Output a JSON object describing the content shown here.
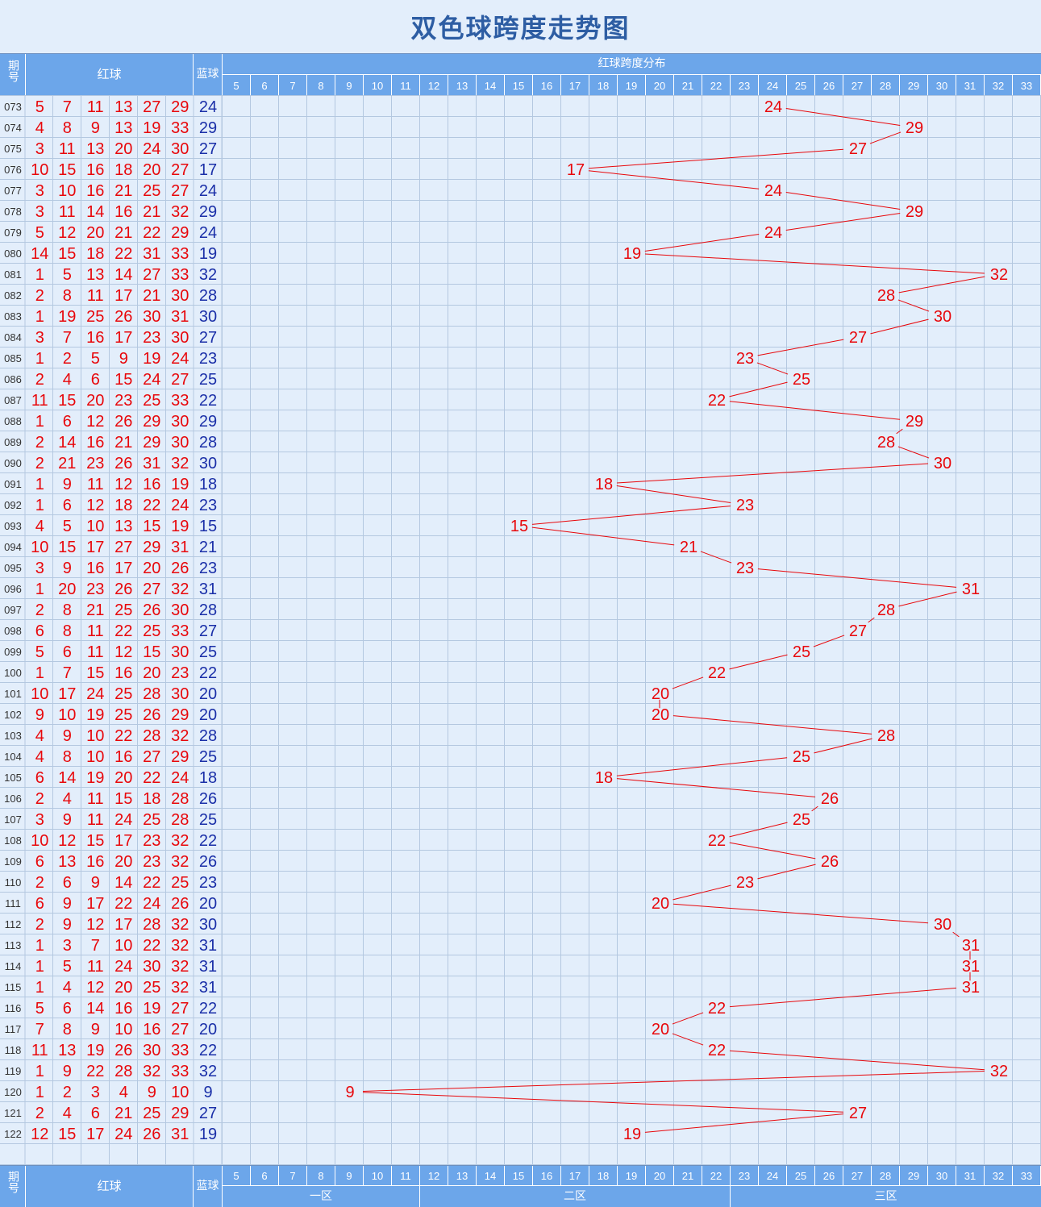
{
  "title": "双色球跨度走势图",
  "header": {
    "issue_label": "期号",
    "red_label": "红球",
    "blue_label": "蓝球",
    "distribution_label": "红球跨度分布"
  },
  "zones": [
    "一区",
    "二区",
    "三区"
  ],
  "colors": {
    "red_ball": "#e8070b",
    "blue_ball": "#1a2fa8",
    "header_bg": "#6ca6ea",
    "grid_bg": "#e3eefb",
    "grid_line": "#b4c8e0",
    "trend_line": "#e8070b"
  },
  "chart_data": {
    "type": "line",
    "x_categories": [
      5,
      6,
      7,
      8,
      9,
      10,
      11,
      12,
      13,
      14,
      15,
      16,
      17,
      18,
      19,
      20,
      21,
      22,
      23,
      24,
      25,
      26,
      27,
      28,
      29,
      30,
      31,
      32,
      33
    ],
    "rows": [
      {
        "issue": "073",
        "red": [
          5,
          7,
          11,
          13,
          27,
          29
        ],
        "blue": 24,
        "span": 24
      },
      {
        "issue": "074",
        "red": [
          4,
          8,
          9,
          13,
          19,
          33
        ],
        "blue": 29,
        "span": 29
      },
      {
        "issue": "075",
        "red": [
          3,
          11,
          13,
          20,
          24,
          30
        ],
        "blue": 27,
        "span": 27
      },
      {
        "issue": "076",
        "red": [
          10,
          15,
          16,
          18,
          20,
          27
        ],
        "blue": 17,
        "span": 17
      },
      {
        "issue": "077",
        "red": [
          3,
          10,
          16,
          21,
          25,
          27
        ],
        "blue": 24,
        "span": 24
      },
      {
        "issue": "078",
        "red": [
          3,
          11,
          14,
          16,
          21,
          32
        ],
        "blue": 29,
        "span": 29
      },
      {
        "issue": "079",
        "red": [
          5,
          12,
          20,
          21,
          22,
          29
        ],
        "blue": 24,
        "span": 24
      },
      {
        "issue": "080",
        "red": [
          14,
          15,
          18,
          22,
          31,
          33
        ],
        "blue": 19,
        "span": 19
      },
      {
        "issue": "081",
        "red": [
          1,
          5,
          13,
          14,
          27,
          33
        ],
        "blue": 32,
        "span": 32
      },
      {
        "issue": "082",
        "red": [
          2,
          8,
          11,
          17,
          21,
          30
        ],
        "blue": 28,
        "span": 28
      },
      {
        "issue": "083",
        "red": [
          1,
          19,
          25,
          26,
          30,
          31
        ],
        "blue": 30,
        "span": 30
      },
      {
        "issue": "084",
        "red": [
          3,
          7,
          16,
          17,
          23,
          30
        ],
        "blue": 27,
        "span": 27
      },
      {
        "issue": "085",
        "red": [
          1,
          2,
          5,
          9,
          19,
          24
        ],
        "blue": 23,
        "span": 23
      },
      {
        "issue": "086",
        "red": [
          2,
          4,
          6,
          15,
          24,
          27
        ],
        "blue": 25,
        "span": 25
      },
      {
        "issue": "087",
        "red": [
          11,
          15,
          20,
          23,
          25,
          33
        ],
        "blue": 22,
        "span": 22
      },
      {
        "issue": "088",
        "red": [
          1,
          6,
          12,
          26,
          29,
          30
        ],
        "blue": 29,
        "span": 29
      },
      {
        "issue": "089",
        "red": [
          2,
          14,
          16,
          21,
          29,
          30
        ],
        "blue": 28,
        "span": 28
      },
      {
        "issue": "090",
        "red": [
          2,
          21,
          23,
          26,
          31,
          32
        ],
        "blue": 30,
        "span": 30
      },
      {
        "issue": "091",
        "red": [
          1,
          9,
          11,
          12,
          16,
          19
        ],
        "blue": 18,
        "span": 18
      },
      {
        "issue": "092",
        "red": [
          1,
          6,
          12,
          18,
          22,
          24
        ],
        "blue": 23,
        "span": 23
      },
      {
        "issue": "093",
        "red": [
          4,
          5,
          10,
          13,
          15,
          19
        ],
        "blue": 15,
        "span": 15
      },
      {
        "issue": "094",
        "red": [
          10,
          15,
          17,
          27,
          29,
          31
        ],
        "blue": 21,
        "span": 21
      },
      {
        "issue": "095",
        "red": [
          3,
          9,
          16,
          17,
          20,
          26
        ],
        "blue": 23,
        "span": 23
      },
      {
        "issue": "096",
        "red": [
          1,
          20,
          23,
          26,
          27,
          32
        ],
        "blue": 31,
        "span": 31
      },
      {
        "issue": "097",
        "red": [
          2,
          8,
          21,
          25,
          26,
          30
        ],
        "blue": 28,
        "span": 28
      },
      {
        "issue": "098",
        "red": [
          6,
          8,
          11,
          22,
          25,
          33
        ],
        "blue": 27,
        "span": 27
      },
      {
        "issue": "099",
        "red": [
          5,
          6,
          11,
          12,
          15,
          30
        ],
        "blue": 25,
        "span": 25
      },
      {
        "issue": "100",
        "red": [
          1,
          7,
          15,
          16,
          20,
          23
        ],
        "blue": 22,
        "span": 22
      },
      {
        "issue": "101",
        "red": [
          10,
          17,
          24,
          25,
          28,
          30
        ],
        "blue": 20,
        "span": 20
      },
      {
        "issue": "102",
        "red": [
          9,
          10,
          19,
          25,
          26,
          29
        ],
        "blue": 20,
        "span": 20
      },
      {
        "issue": "103",
        "red": [
          4,
          9,
          10,
          22,
          28,
          32
        ],
        "blue": 28,
        "span": 28
      },
      {
        "issue": "104",
        "red": [
          4,
          8,
          10,
          16,
          27,
          29
        ],
        "blue": 25,
        "span": 25
      },
      {
        "issue": "105",
        "red": [
          6,
          14,
          19,
          20,
          22,
          24
        ],
        "blue": 18,
        "span": 18
      },
      {
        "issue": "106",
        "red": [
          2,
          4,
          11,
          15,
          18,
          28
        ],
        "blue": 26,
        "span": 26
      },
      {
        "issue": "107",
        "red": [
          3,
          9,
          11,
          24,
          25,
          28
        ],
        "blue": 25,
        "span": 25
      },
      {
        "issue": "108",
        "red": [
          10,
          12,
          15,
          17,
          23,
          32
        ],
        "blue": 22,
        "span": 22
      },
      {
        "issue": "109",
        "red": [
          6,
          13,
          16,
          20,
          23,
          32
        ],
        "blue": 26,
        "span": 26
      },
      {
        "issue": "110",
        "red": [
          2,
          6,
          9,
          14,
          22,
          25
        ],
        "blue": 23,
        "span": 23
      },
      {
        "issue": "111",
        "red": [
          6,
          9,
          17,
          22,
          24,
          26
        ],
        "blue": 20,
        "span": 20
      },
      {
        "issue": "112",
        "red": [
          2,
          9,
          12,
          17,
          28,
          32
        ],
        "blue": 30,
        "span": 30
      },
      {
        "issue": "113",
        "red": [
          1,
          3,
          7,
          10,
          22,
          32
        ],
        "blue": 31,
        "span": 31
      },
      {
        "issue": "114",
        "red": [
          1,
          5,
          11,
          24,
          30,
          32
        ],
        "blue": 31,
        "span": 31
      },
      {
        "issue": "115",
        "red": [
          1,
          4,
          12,
          20,
          25,
          32
        ],
        "blue": 31,
        "span": 31
      },
      {
        "issue": "116",
        "red": [
          5,
          6,
          14,
          16,
          19,
          27
        ],
        "blue": 22,
        "span": 22
      },
      {
        "issue": "117",
        "red": [
          7,
          8,
          9,
          10,
          16,
          27
        ],
        "blue": 20,
        "span": 20
      },
      {
        "issue": "118",
        "red": [
          11,
          13,
          19,
          26,
          30,
          33
        ],
        "blue": 22,
        "span": 22
      },
      {
        "issue": "119",
        "red": [
          1,
          9,
          22,
          28,
          32,
          33
        ],
        "blue": 32,
        "span": 32
      },
      {
        "issue": "120",
        "red": [
          1,
          2,
          3,
          4,
          9,
          10
        ],
        "blue": 9,
        "span": 9
      },
      {
        "issue": "121",
        "red": [
          2,
          4,
          6,
          21,
          25,
          29
        ],
        "blue": 27,
        "span": 27
      },
      {
        "issue": "122",
        "red": [
          12,
          15,
          17,
          24,
          26,
          31
        ],
        "blue": 19,
        "span": 19
      }
    ]
  }
}
